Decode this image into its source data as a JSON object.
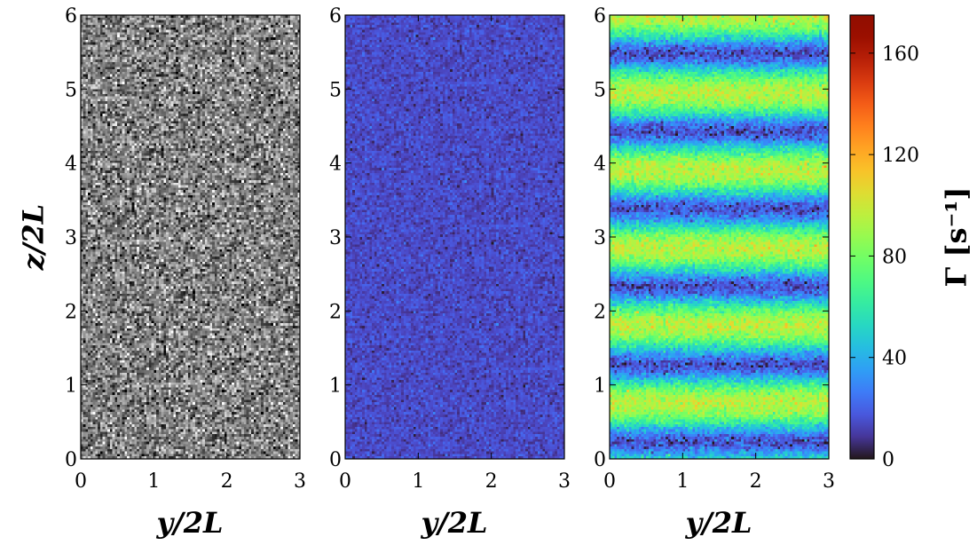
{
  "chart_data": [
    {
      "type": "heatmap",
      "panel": "grayscale-noise",
      "colormap": "gray",
      "xlabel": "y/2L",
      "ylabel": "z/2L",
      "xlim": [
        0,
        3
      ],
      "ylim": [
        0,
        6
      ],
      "xticks": [
        "0",
        "1",
        "2",
        "3"
      ],
      "yticks": [
        "0",
        "1",
        "2",
        "3",
        "4",
        "5",
        "6"
      ],
      "grid_cols": 90,
      "grid_rows": 180,
      "pattern": "random noise",
      "value_mean": 0.5,
      "value_spread": 0.45
    },
    {
      "type": "heatmap",
      "panel": "low-rate",
      "colormap": "turbo",
      "xlabel": "y/2L",
      "xlim": [
        0,
        3
      ],
      "ylim": [
        0,
        6
      ],
      "xticks": [
        "0",
        "1",
        "2",
        "3"
      ],
      "yticks": [
        "0",
        "1",
        "2",
        "3",
        "4",
        "5",
        "6"
      ],
      "grid_cols": 90,
      "grid_rows": 180,
      "pattern": "uniform low values with noise",
      "value_mean": 14,
      "value_spread": 8
    },
    {
      "type": "heatmap",
      "panel": "striped-rate",
      "colormap": "turbo",
      "xlabel": "y/2L",
      "xlim": [
        0,
        3
      ],
      "ylim": [
        0,
        6
      ],
      "xticks": [
        "0",
        "1",
        "2",
        "3"
      ],
      "yticks": [
        "0",
        "1",
        "2",
        "3",
        "4",
        "5",
        "6"
      ],
      "grid_cols": 90,
      "grid_rows": 180,
      "pattern": "horizontal bands periodic in z",
      "band_period_z": 1.05,
      "band_phase_z": 0.75,
      "value_min": 15,
      "value_max": 95,
      "noise": 8
    }
  ],
  "colorbar": {
    "label": "Γ [s⁻¹]",
    "range": [
      0,
      175
    ],
    "ticks": [
      "0",
      "40",
      "80",
      "120",
      "160"
    ],
    "tick_values": [
      0,
      40,
      80,
      120,
      160
    ],
    "colormap": "turbo"
  }
}
